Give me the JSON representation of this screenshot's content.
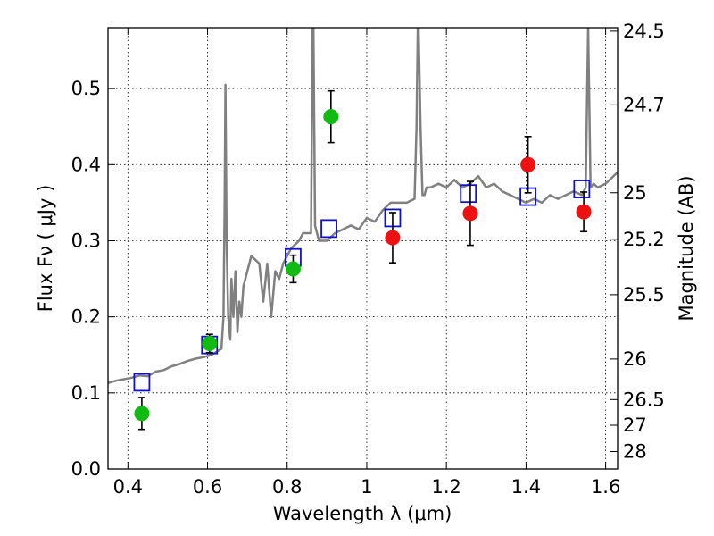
{
  "chart_data": {
    "type": "scatter",
    "xlabel": "Wavelength  λ (μm)",
    "ylabel": "Flux  Fν  ( μJy )",
    "y2label": "Magnitude (AB)",
    "xlim": [
      0.35,
      1.63
    ],
    "ylim": [
      0.0,
      0.58
    ],
    "grid": true,
    "x_ticks": [
      0.4,
      0.6,
      0.8,
      1.0,
      1.2,
      1.4,
      1.6
    ],
    "x_tick_labels": [
      "0.4",
      "0.6",
      "0.8",
      "1",
      "1.2",
      "1.4",
      "1.6"
    ],
    "y_ticks": [
      0.0,
      0.1,
      0.2,
      0.3,
      0.4,
      0.5
    ],
    "y_tick_labels": [
      "0.0",
      "0.1",
      "0.2",
      "0.3",
      "0.4",
      "0.5"
    ],
    "y2_ticks": [
      {
        "label": "24.5",
        "mag": 24.5
      },
      {
        "label": "24.7",
        "mag": 24.7
      },
      {
        "label": "25",
        "mag": 25.0
      },
      {
        "label": "25.2",
        "mag": 25.2
      },
      {
        "label": "25.5",
        "mag": 25.5
      },
      {
        "label": "26",
        "mag": 26.0
      },
      {
        "label": "26.5",
        "mag": 26.5
      },
      {
        "label": "27",
        "mag": 27.0
      },
      {
        "label": "28",
        "mag": 28.0
      }
    ],
    "colors": {
      "model": "#808080",
      "green": "#11bb11",
      "red": "#ee1111",
      "squares": "#1111cc",
      "errorbar": "#000000"
    },
    "series": [
      {
        "kind": "model_spectrum",
        "x": [
          0.35,
          0.37,
          0.39,
          0.41,
          0.43,
          0.45,
          0.47,
          0.49,
          0.51,
          0.53,
          0.55,
          0.57,
          0.59,
          0.61,
          0.625,
          0.635,
          0.64,
          0.643,
          0.645,
          0.648,
          0.652,
          0.657,
          0.66,
          0.665,
          0.67,
          0.675,
          0.68,
          0.685,
          0.69,
          0.7,
          0.71,
          0.72,
          0.73,
          0.74,
          0.75,
          0.76,
          0.77,
          0.78,
          0.79,
          0.8,
          0.81,
          0.82,
          0.83,
          0.84,
          0.85,
          0.86,
          0.862,
          0.864,
          0.866,
          0.868,
          0.87,
          0.88,
          0.9,
          0.92,
          0.94,
          0.96,
          0.98,
          1.0,
          1.02,
          1.04,
          1.06,
          1.08,
          1.1,
          1.12,
          1.125,
          1.128,
          1.13,
          1.135,
          1.14,
          1.145,
          1.15,
          1.155,
          1.16,
          1.18,
          1.2,
          1.22,
          1.24,
          1.26,
          1.28,
          1.3,
          1.32,
          1.34,
          1.36,
          1.38,
          1.4,
          1.42,
          1.44,
          1.46,
          1.48,
          1.5,
          1.52,
          1.54,
          1.55,
          1.553,
          1.556,
          1.559,
          1.562,
          1.57,
          1.58,
          1.6,
          1.63
        ],
        "y": [
          0.113,
          0.116,
          0.118,
          0.12,
          0.123,
          0.122,
          0.128,
          0.13,
          0.135,
          0.138,
          0.142,
          0.145,
          0.147,
          0.15,
          0.155,
          0.158,
          0.2,
          0.35,
          0.505,
          0.3,
          0.2,
          0.17,
          0.25,
          0.2,
          0.26,
          0.18,
          0.22,
          0.2,
          0.24,
          0.26,
          0.28,
          0.275,
          0.27,
          0.22,
          0.27,
          0.2,
          0.26,
          0.25,
          0.27,
          0.28,
          0.29,
          0.295,
          0.3,
          0.31,
          0.31,
          0.31,
          0.45,
          0.58,
          0.58,
          0.45,
          0.32,
          0.3,
          0.3,
          0.31,
          0.315,
          0.32,
          0.315,
          0.33,
          0.325,
          0.34,
          0.35,
          0.35,
          0.35,
          0.355,
          0.45,
          0.58,
          0.58,
          0.45,
          0.36,
          0.36,
          0.37,
          0.37,
          0.37,
          0.375,
          0.37,
          0.38,
          0.37,
          0.375,
          0.385,
          0.37,
          0.375,
          0.365,
          0.36,
          0.355,
          0.35,
          0.355,
          0.35,
          0.36,
          0.355,
          0.36,
          0.365,
          0.36,
          0.37,
          0.48,
          0.58,
          0.48,
          0.37,
          0.375,
          0.37,
          0.375,
          0.39
        ]
      },
      {
        "kind": "observed_green",
        "x": [
          0.435,
          0.605,
          0.815,
          0.91
        ],
        "y": [
          0.073,
          0.165,
          0.263,
          0.463
        ],
        "err": [
          0.021,
          0.012,
          0.018,
          0.034
        ]
      },
      {
        "kind": "observed_red",
        "x": [
          1.065,
          1.26,
          1.405,
          1.545
        ],
        "y": [
          0.304,
          0.336,
          0.4,
          0.338
        ],
        "err": [
          0.033,
          0.042,
          0.037,
          0.026
        ]
      },
      {
        "kind": "model_photometry",
        "x": [
          0.435,
          0.605,
          0.815,
          0.905,
          1.065,
          1.255,
          1.405,
          1.54
        ],
        "y": [
          0.114,
          0.163,
          0.278,
          0.316,
          0.33,
          0.362,
          0.358,
          0.368
        ]
      }
    ]
  }
}
